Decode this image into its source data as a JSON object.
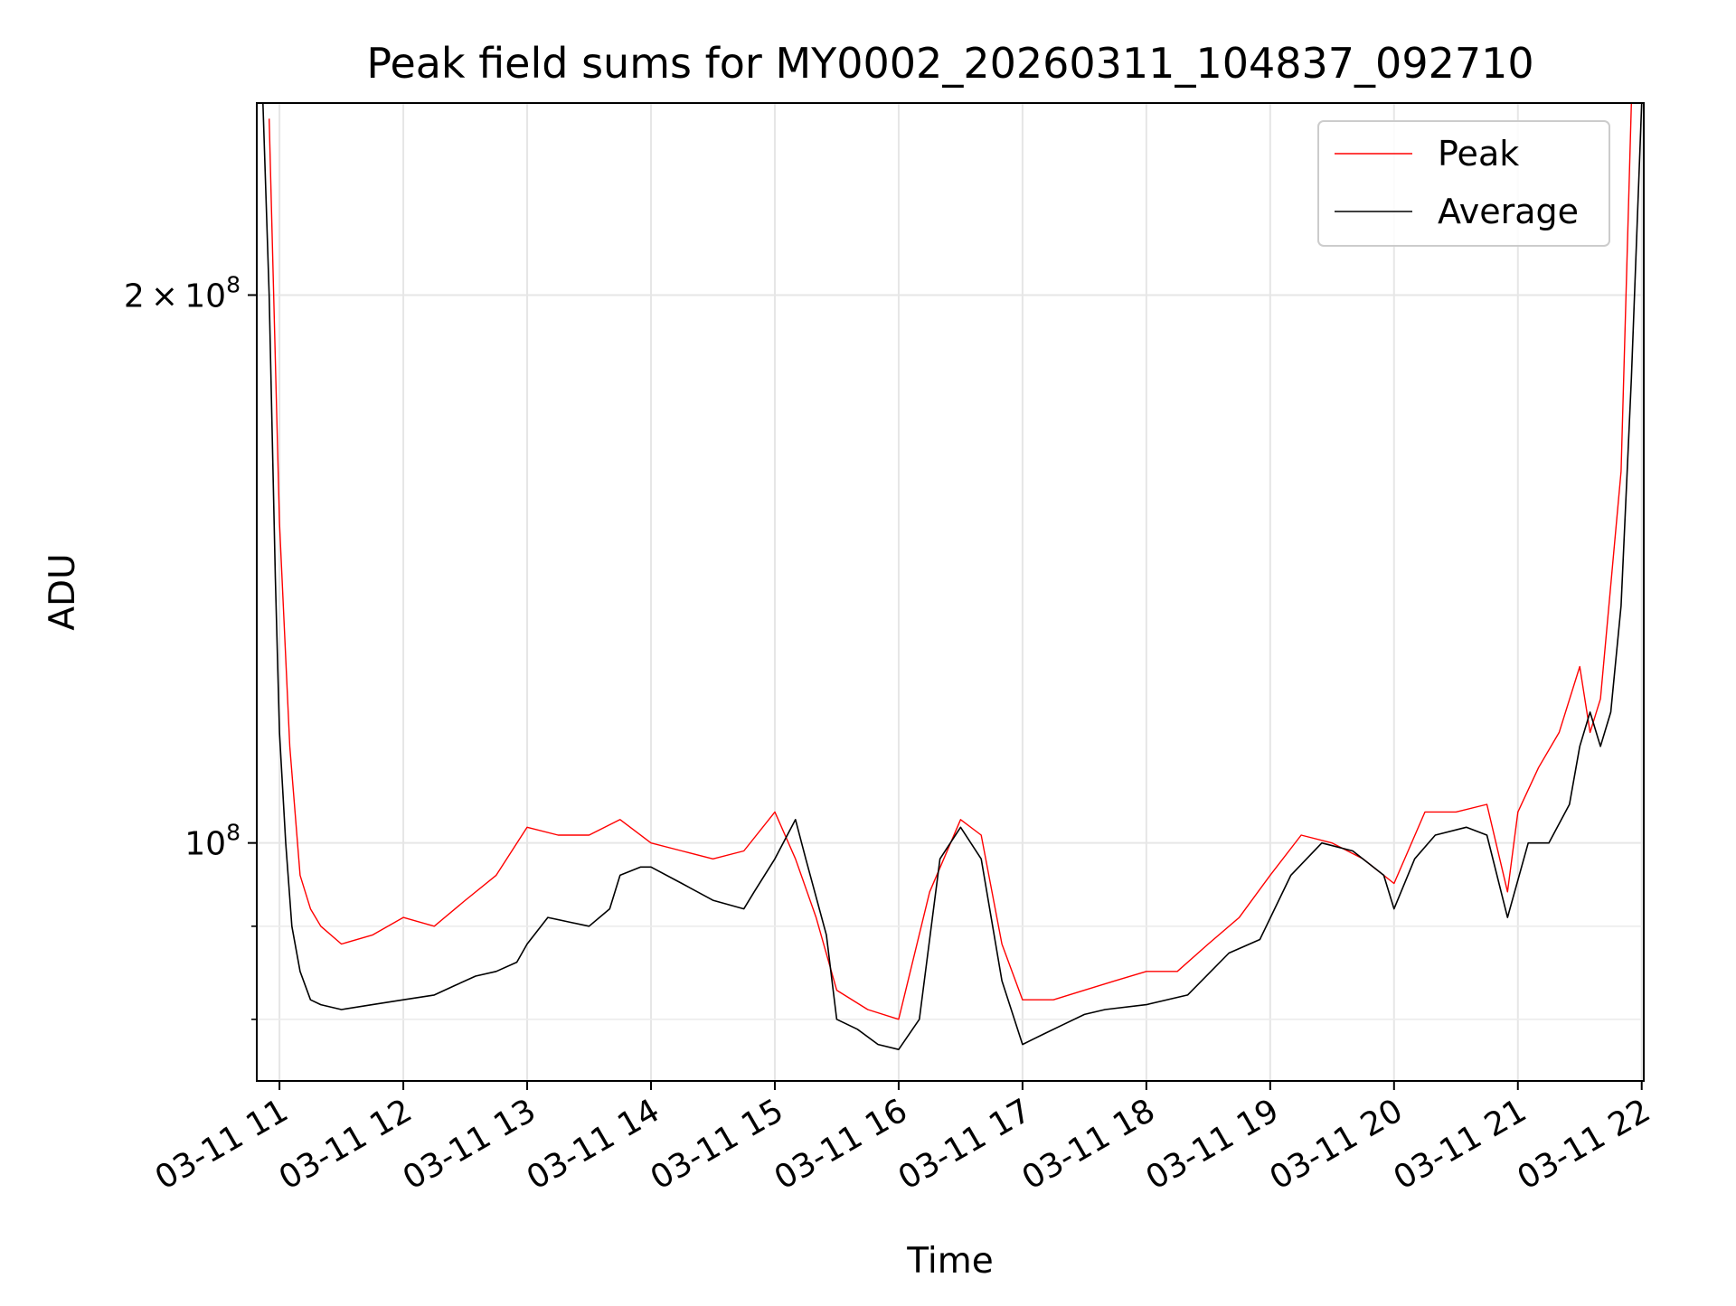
{
  "chart_data": {
    "type": "line",
    "title": "Peak field sums for MY0002_20260311_104837_092710",
    "xlabel": "Time",
    "ylabel": "ADU",
    "yscale": "log",
    "grid": true,
    "legend_position": "top-right",
    "x_range": [
      "03-11 10:49",
      "03-11 22:01"
    ],
    "ylim": [
      74000000,
      255000000
    ],
    "x_tick_labels": [
      "03-11 11",
      "03-11 12",
      "03-11 13",
      "03-11 14",
      "03-11 15",
      "03-11 16",
      "03-11 17",
      "03-11 18",
      "03-11 19",
      "03-11 20",
      "03-11 21",
      "03-11 22"
    ],
    "y_tick_labels": [
      {
        "value": 200000000,
        "mantissa": "2",
        "exponent": "8"
      },
      {
        "value": 100000000,
        "mantissa": "",
        "exponent": "8"
      }
    ],
    "y_minor_ticks": [
      80000000,
      90000000
    ],
    "series": [
      {
        "name": "Peak",
        "color": "#ff0000",
        "x": [
          "10:55",
          "11:00",
          "11:05",
          "11:10",
          "11:15",
          "11:20",
          "11:30",
          "11:45",
          "12:00",
          "12:15",
          "12:30",
          "12:45",
          "13:00",
          "13:15",
          "13:30",
          "13:45",
          "14:00",
          "14:15",
          "14:30",
          "14:45",
          "15:00",
          "15:10",
          "15:20",
          "15:30",
          "15:45",
          "16:00",
          "16:15",
          "16:30",
          "16:40",
          "16:50",
          "17:00",
          "17:15",
          "17:30",
          "17:45",
          "18:00",
          "18:15",
          "18:30",
          "18:45",
          "19:00",
          "19:15",
          "19:30",
          "19:45",
          "20:00",
          "20:15",
          "20:30",
          "20:45",
          "20:55",
          "21:00",
          "21:10",
          "21:20",
          "21:30",
          "21:35",
          "21:40",
          "21:50",
          "21:55"
        ],
        "y": [
          250000000,
          150000000,
          113000000,
          96000000,
          92000000,
          90000000,
          88000000,
          89000000,
          91000000,
          90000000,
          93000000,
          96000000,
          102000000,
          101000000,
          101000000,
          103000000,
          100000000,
          99000000,
          98000000,
          99000000,
          104000000,
          98000000,
          91000000,
          83000000,
          81000000,
          80000000,
          94000000,
          103000000,
          101000000,
          88000000,
          82000000,
          82000000,
          83000000,
          84000000,
          85000000,
          85000000,
          88000000,
          91000000,
          96000000,
          101000000,
          100000000,
          98000000,
          95000000,
          104000000,
          104000000,
          105000000,
          94000000,
          104000000,
          110000000,
          115000000,
          125000000,
          115000000,
          120000000,
          160000000,
          255000000
        ]
      },
      {
        "name": "Average",
        "color": "#000000",
        "x": [
          "10:52",
          "10:55",
          "10:58",
          "11:00",
          "11:03",
          "11:06",
          "11:10",
          "11:15",
          "11:20",
          "11:30",
          "11:45",
          "12:00",
          "12:15",
          "12:25",
          "12:35",
          "12:45",
          "12:55",
          "13:00",
          "13:10",
          "13:20",
          "13:30",
          "13:40",
          "13:45",
          "13:55",
          "14:00",
          "14:15",
          "14:30",
          "14:45",
          "14:50",
          "15:00",
          "15:10",
          "15:15",
          "15:25",
          "15:30",
          "15:40",
          "15:50",
          "16:00",
          "16:10",
          "16:20",
          "16:30",
          "16:40",
          "16:50",
          "17:00",
          "17:10",
          "17:20",
          "17:30",
          "17:40",
          "18:00",
          "18:20",
          "18:40",
          "18:55",
          "19:10",
          "19:25",
          "19:40",
          "19:55",
          "20:00",
          "20:10",
          "20:20",
          "20:35",
          "20:45",
          "20:55",
          "21:05",
          "21:15",
          "21:25",
          "21:30",
          "21:35",
          "21:40",
          "21:45",
          "21:50",
          "21:55",
          "22:00"
        ],
        "y": [
          255000000,
          200000000,
          140000000,
          115000000,
          100000000,
          90000000,
          85000000,
          82000000,
          81500000,
          81000000,
          81500000,
          82000000,
          82500000,
          83500000,
          84500000,
          85000000,
          86000000,
          88000000,
          91000000,
          90500000,
          90000000,
          92000000,
          96000000,
          97000000,
          97000000,
          95000000,
          93000000,
          92000000,
          94000000,
          98000000,
          103000000,
          98000000,
          89000000,
          80000000,
          79000000,
          77500000,
          77000000,
          80000000,
          98000000,
          102000000,
          98000000,
          84000000,
          77500000,
          78500000,
          79500000,
          80500000,
          81000000,
          81500000,
          82500000,
          87000000,
          88500000,
          96000000,
          100000000,
          99000000,
          96000000,
          92000000,
          98000000,
          101000000,
          102000000,
          101000000,
          91000000,
          100000000,
          100000000,
          105000000,
          113000000,
          118000000,
          113000000,
          118000000,
          135000000,
          180000000,
          255000000
        ]
      }
    ]
  }
}
